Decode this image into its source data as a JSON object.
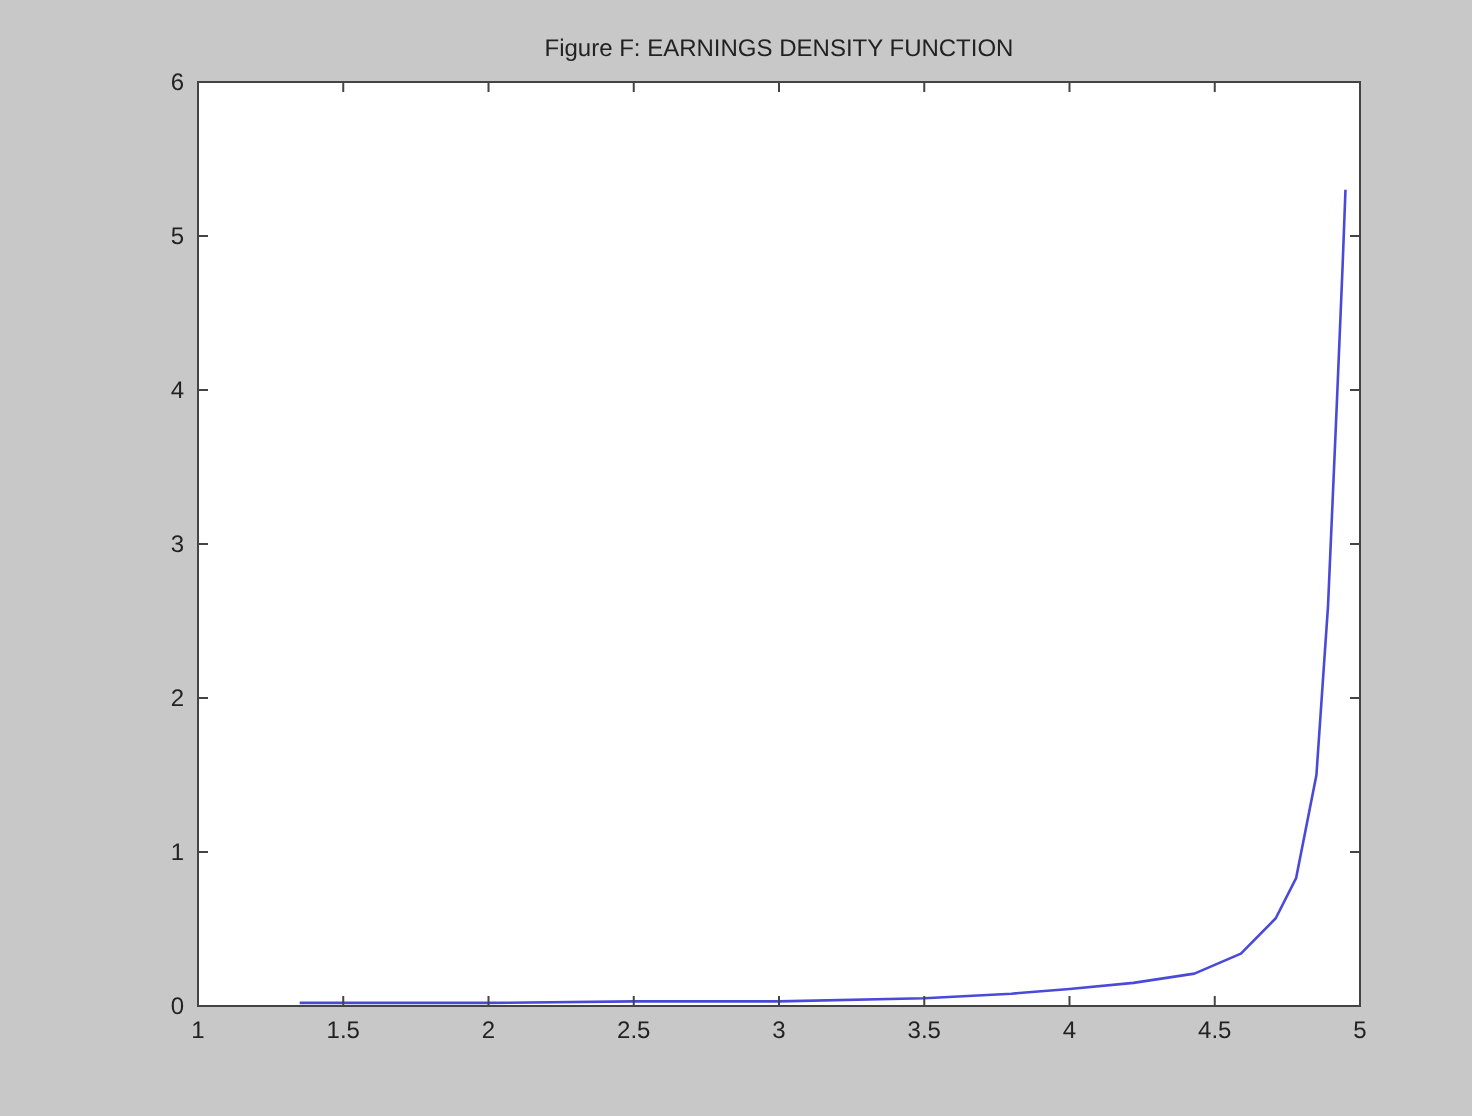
{
  "chart_data": {
    "type": "line",
    "title": "Figure F: EARNINGS DENSITY FUNCTION",
    "x": [
      1.35,
      1.5,
      2,
      2.5,
      3,
      3.5,
      3.8,
      4,
      4.22,
      4.43,
      4.59,
      4.71,
      4.78,
      4.85,
      4.89,
      4.92,
      4.94,
      4.95
    ],
    "series": [
      {
        "color": "#4a4ad8",
        "values": [
          0.02,
          0.02,
          0.02,
          0.03,
          0.03,
          0.05,
          0.08,
          0.11,
          0.15,
          0.21,
          0.34,
          0.57,
          0.83,
          1.5,
          2.6,
          3.9,
          4.8,
          5.3
        ]
      }
    ],
    "xlim": [
      1,
      5
    ],
    "xticks": [
      1,
      1.5,
      2,
      2.5,
      3,
      3.5,
      4,
      4.5,
      5
    ],
    "ylim": [
      0,
      6
    ],
    "yticks": [
      0,
      1,
      2,
      3,
      4,
      5,
      6
    ]
  }
}
